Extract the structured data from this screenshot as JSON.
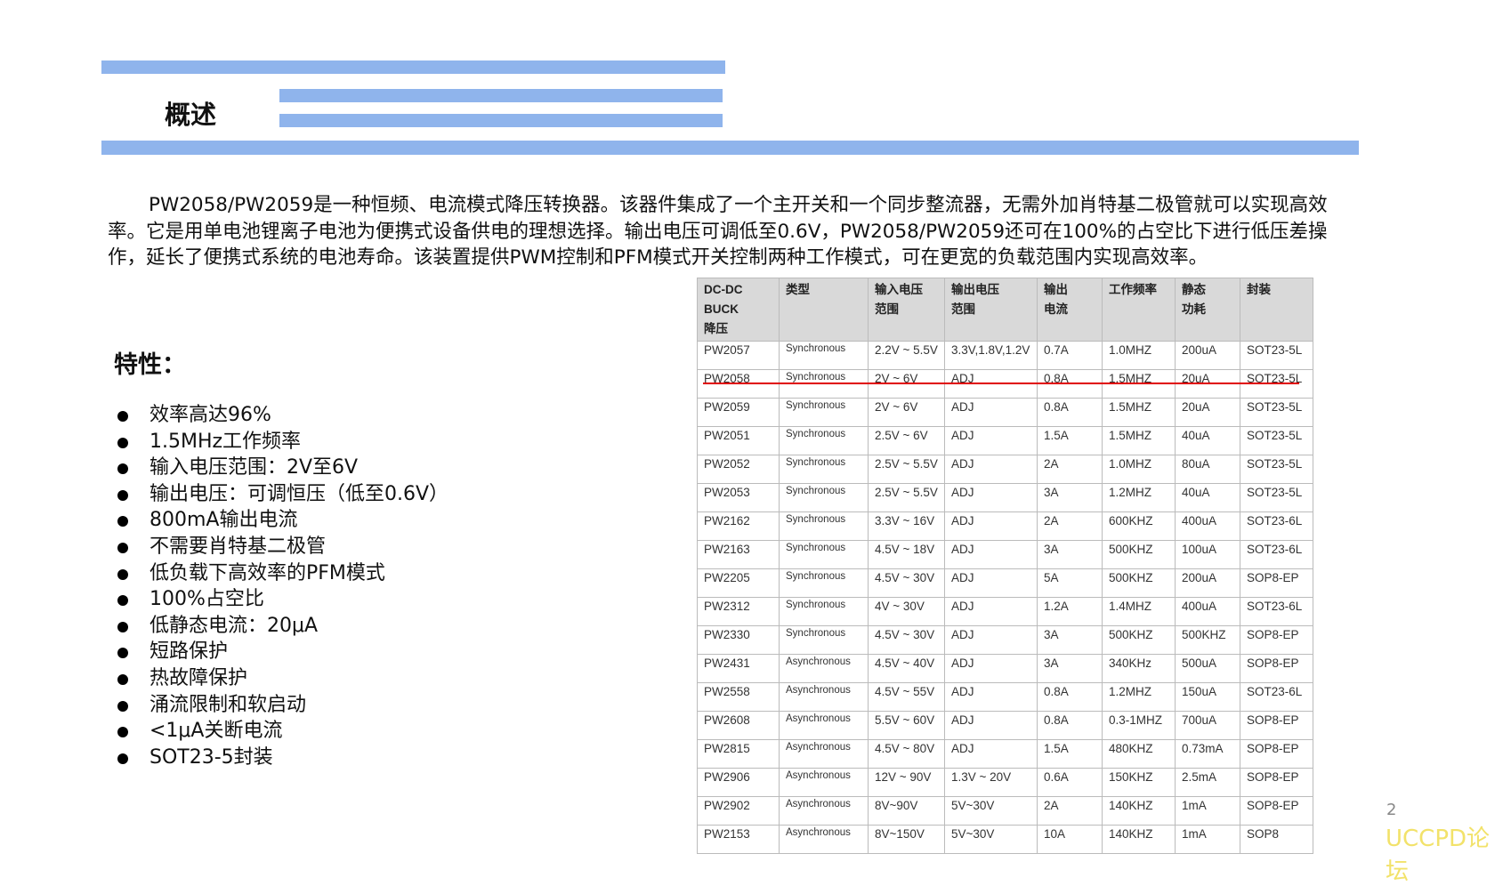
{
  "header": {
    "title": "概述"
  },
  "intro": "PW2058/PW2059是一种恒频、电流模式降压转换器。该器件集成了一个主开关和一个同步整流器，无需外加肖特基二极管就可以实现高效率。它是用单电池锂离子电池为便携式设备供电的理想选择。输出电压可调低至0.6V，PW2058/PW2059还可在100%的占空比下进行低压差操作，延长了便携式系统的电池寿命。该装置提供PWM控制和PFM模式开关控制两种工作模式，可在更宽的负载范围内实现高效率。",
  "features": {
    "heading": "特性：",
    "items": [
      "效率高达96%",
      "1.5MHz工作频率",
      "输入电压范围：2V至6V",
      "输出电压：可调恒压（低至0.6V）",
      "800mA输出电流",
      "不需要肖特基二极管",
      "低负载下高效率的PFM模式",
      " 100%占空比",
      "低静态电流：20μA",
      "短路保护",
      "热故障保护",
      "涌流限制和软启动",
      "<1μA关断电流",
      " SOT23-5封装"
    ]
  },
  "table": {
    "headers": [
      "DC-DC\nBUCK\n降压",
      "类型",
      "输入电压\n范围",
      "输出电压\n范围",
      "输出\n电流",
      "工作频率",
      "静态\n功耗",
      "封装"
    ],
    "rows": [
      [
        "PW2057",
        "Synchronous",
        "2.2V ~ 5.5V",
        "3.3V,1.8V,1.2V",
        "0.7A",
        "1.0MHZ",
        "200uA",
        "SOT23-5L"
      ],
      [
        "PW2058",
        "Synchronous",
        "2V ~ 6V",
        "ADJ",
        "0.8A",
        "1.5MHZ",
        "20uA",
        "SOT23-5L"
      ],
      [
        "PW2059",
        "Synchronous",
        "2V ~ 6V",
        "ADJ",
        "0.8A",
        "1.5MHZ",
        "20uA",
        "SOT23-5L"
      ],
      [
        "PW2051",
        "Synchronous",
        "2.5V ~ 6V",
        "ADJ",
        "1.5A",
        "1.5MHZ",
        "40uA",
        "SOT23-5L"
      ],
      [
        "PW2052",
        "Synchronous",
        "2.5V ~ 5.5V",
        "ADJ",
        "2A",
        "1.0MHZ",
        "80uA",
        "SOT23-5L"
      ],
      [
        "PW2053",
        "Synchronous",
        "2.5V ~ 5.5V",
        "ADJ",
        "3A",
        "1.2MHZ",
        "40uA",
        "SOT23-5L"
      ],
      [
        "PW2162",
        "Synchronous",
        "3.3V ~ 16V",
        "ADJ",
        "2A",
        "600KHZ",
        "400uA",
        "SOT23-6L"
      ],
      [
        "PW2163",
        "Synchronous",
        "4.5V ~ 18V",
        "ADJ",
        "3A",
        "500KHZ",
        "100uA",
        "SOT23-6L"
      ],
      [
        "PW2205",
        "Synchronous",
        "4.5V ~ 30V",
        "ADJ",
        "5A",
        "500KHZ",
        "200uA",
        "SOP8-EP"
      ],
      [
        "PW2312",
        "Synchronous",
        "4V ~ 30V",
        "ADJ",
        "1.2A",
        "1.4MHZ",
        "400uA",
        "SOT23-6L"
      ],
      [
        "PW2330",
        "Synchronous",
        "4.5V ~ 30V",
        "ADJ",
        "3A",
        "500KHZ",
        "500KHZ",
        "SOP8-EP"
      ],
      [
        "PW2431",
        "Asynchronous",
        "4.5V ~ 40V",
        "ADJ",
        "3A",
        "340KHz",
        "500uA",
        "SOP8-EP"
      ],
      [
        "PW2558",
        "Asynchronous",
        "4.5V ~ 55V",
        "ADJ",
        "0.8A",
        "1.2MHZ",
        "150uA",
        "SOT23-6L"
      ],
      [
        "PW2608",
        "Asynchronous",
        "5.5V ~ 60V",
        "ADJ",
        "0.8A",
        "0.3-1MHZ",
        "700uA",
        "SOP8-EP"
      ],
      [
        "PW2815",
        "Asynchronous",
        "4.5V ~ 80V",
        "ADJ",
        "1.5A",
        "480KHZ",
        "0.73mA",
        "SOP8-EP"
      ],
      [
        "PW2906",
        "Asynchronous",
        "12V ~ 90V",
        "1.3V ~ 20V",
        "0.6A",
        "150KHZ",
        "2.5mA",
        "SOP8-EP"
      ],
      [
        "PW2902",
        "Asynchronous",
        "8V~90V",
        "5V~30V",
        "2A",
        "140KHZ",
        "1mA",
        "SOP8-EP"
      ],
      [
        "PW2153",
        "Asynchronous",
        "8V~150V",
        "5V~30V",
        "10A",
        "140KHZ",
        "1mA",
        "SOP8"
      ]
    ],
    "highlight_color": "#e00000"
  },
  "footer": {
    "page": "2",
    "watermark": "UCCPD论坛"
  },
  "colors": {
    "accent_bar": "#8fb4ec",
    "watermark": "#f2e26a"
  }
}
